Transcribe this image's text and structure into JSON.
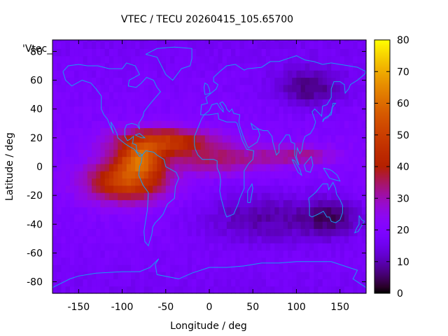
{
  "chart_data": {
    "type": "heatmap",
    "title": "VTEC / TECU 20260415_105.65700",
    "xlabel": "Longitude / deg",
    "ylabel": "Latitude / deg",
    "key_label": "'Vtec_",
    "xlim": [
      -180,
      180
    ],
    "ylim": [
      -88,
      88
    ],
    "xticks": [
      -150,
      -100,
      -50,
      0,
      50,
      100,
      150
    ],
    "yticks": [
      -80,
      -60,
      -40,
      -20,
      0,
      20,
      40,
      60,
      80
    ],
    "colorbar": {
      "range": [
        0,
        80
      ],
      "ticks": [
        0,
        10,
        20,
        30,
        40,
        50,
        60,
        70,
        80
      ],
      "colormap": "gnuplot-pm3d-rgbformulae-7-5-15"
    },
    "grid": false,
    "background_level_tecu": 20,
    "field_components": [
      {
        "name": "equatorial anomaly crest south",
        "lon": -95,
        "lat": -10,
        "peak": 32,
        "lon_width": 45,
        "lat_width": 14
      },
      {
        "name": "equatorial anomaly crest north",
        "lon": -55,
        "lat": 18,
        "peak": 28,
        "lon_width": 55,
        "lat_width": 9
      },
      {
        "name": "central peak",
        "lon": -80,
        "lat": 5,
        "peak": 30,
        "lon_width": 25,
        "lat_width": 10
      },
      {
        "name": "atlantic tongue",
        "lon": 10,
        "lat": 5,
        "peak": 14,
        "lon_width": 55,
        "lat_width": 10
      },
      {
        "name": "indian ocean band",
        "lon": 100,
        "lat": 8,
        "peak": 12,
        "lon_width": 45,
        "lat_width": 7
      },
      {
        "name": "southern depletion",
        "lon": 60,
        "lat": -35,
        "peak": -10,
        "lon_width": 70,
        "lat_width": 18
      },
      {
        "name": "australian depletion",
        "lon": 140,
        "lat": -35,
        "peak": -12,
        "lon_width": 35,
        "lat_width": 14
      },
      {
        "name": "asian night depletion",
        "lon": 115,
        "lat": 55,
        "peak": -12,
        "lon_width": 40,
        "lat_width": 14
      }
    ]
  },
  "colors": {
    "coastline": "#1a9cf0",
    "frame": "#000000"
  }
}
